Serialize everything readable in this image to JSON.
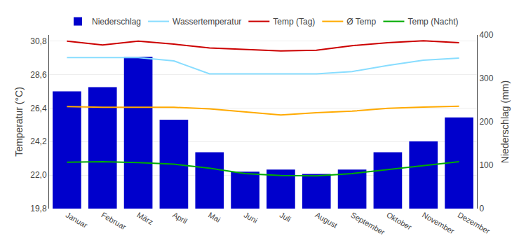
{
  "chart_data": {
    "type": "line",
    "categories": [
      "Januar",
      "Februar",
      "März",
      "April",
      "Mai",
      "Juni",
      "Juli",
      "August",
      "September",
      "Oktober",
      "November",
      "Dezember"
    ],
    "series": [
      {
        "name": "Niederschlag",
        "type": "bar",
        "axis": "y2",
        "color": "#0000cc",
        "values": [
          270,
          280,
          350,
          205,
          130,
          85,
          90,
          80,
          90,
          130,
          155,
          210
        ]
      },
      {
        "name": "Wassertemperatur",
        "type": "line",
        "color": "#88ddff",
        "values": [
          29.72,
          29.72,
          29.72,
          29.5,
          28.65,
          28.65,
          28.65,
          28.65,
          28.8,
          29.2,
          29.55,
          29.68
        ]
      },
      {
        "name": "Temp (Tag)",
        "type": "line",
        "color": "#cc0000",
        "values": [
          30.8,
          30.55,
          30.8,
          30.6,
          30.35,
          30.25,
          30.15,
          30.2,
          30.5,
          30.7,
          30.82,
          30.7
        ]
      },
      {
        "name": "Ø Temp",
        "type": "line",
        "color": "#ffaa00",
        "values": [
          26.5,
          26.45,
          26.45,
          26.45,
          26.35,
          26.15,
          25.95,
          26.1,
          26.2,
          26.38,
          26.47,
          26.52
        ]
      },
      {
        "name": "Temp (Nacht)",
        "type": "line",
        "color": "#00aa00",
        "values": [
          22.85,
          22.88,
          22.82,
          22.72,
          22.45,
          22.1,
          21.97,
          21.95,
          22.1,
          22.35,
          22.6,
          22.88
        ]
      }
    ],
    "ylabel": "Temperatur (°C)",
    "y2label": "Niederschlag (mm)",
    "ylim": [
      19.8,
      31.2
    ],
    "yticks": [
      {
        "value": 19.8,
        "label": "19,8"
      },
      {
        "value": 22.0,
        "label": "22,0"
      },
      {
        "value": 24.2,
        "label": "24,2"
      },
      {
        "value": 26.4,
        "label": "26,4"
      },
      {
        "value": 28.6,
        "label": "28,6"
      },
      {
        "value": 30.8,
        "label": "30,8"
      }
    ],
    "y2lim": [
      0,
      400
    ],
    "y2ticks": [
      0,
      100,
      200,
      300,
      400
    ],
    "grid": true,
    "legend": "top"
  }
}
